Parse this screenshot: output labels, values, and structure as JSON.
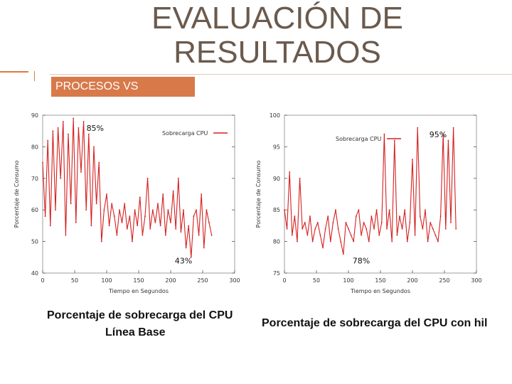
{
  "slide": {
    "title_line1": "EVALUACIÓN DE",
    "title_line2": "RESULTADOS",
    "banner": "PROCESOS VS",
    "caption_left_line1": "Porcentaje de sobrecarga del CPU",
    "caption_left_line2": "Línea Base",
    "caption_right": "Porcentaje de sobrecarga del CPU con hil"
  },
  "colors": {
    "series": "#d42020",
    "accent": "#d8794a",
    "title": "#6b5a4d"
  },
  "chart_data": [
    {
      "type": "line",
      "legend": "Sobrecarga CPU",
      "xlabel": "Tiempo en Segundos",
      "ylabel": "Porcentaje de Consumo",
      "xlim": [
        0,
        300
      ],
      "ylim": [
        40,
        90
      ],
      "xticks": [
        0,
        50,
        100,
        150,
        200,
        250,
        300
      ],
      "yticks": [
        40,
        50,
        60,
        70,
        80,
        90
      ],
      "annotations": [
        {
          "text": "85%",
          "x": 82,
          "y": 85
        },
        {
          "text": "43%",
          "x": 220,
          "y": 43
        }
      ],
      "x": [
        0,
        4,
        8,
        12,
        16,
        20,
        24,
        28,
        32,
        36,
        40,
        44,
        48,
        52,
        56,
        60,
        64,
        68,
        72,
        76,
        80,
        84,
        88,
        92,
        96,
        100,
        104,
        108,
        112,
        116,
        120,
        124,
        128,
        132,
        136,
        140,
        144,
        148,
        152,
        156,
        160,
        164,
        168,
        172,
        176,
        180,
        184,
        188,
        192,
        196,
        200,
        204,
        208,
        212,
        216,
        220,
        224,
        228,
        232,
        236,
        240,
        244,
        248,
        252,
        256,
        260,
        264
      ],
      "values": [
        75,
        58,
        82,
        55,
        85,
        60,
        86,
        70,
        88,
        52,
        84,
        62,
        89,
        56,
        86,
        72,
        88,
        60,
        84,
        55,
        80,
        62,
        75,
        50,
        60,
        65,
        55,
        62,
        58,
        52,
        60,
        56,
        62,
        54,
        58,
        50,
        60,
        55,
        64,
        52,
        58,
        70,
        54,
        60,
        56,
        62,
        55,
        65,
        52,
        60,
        56,
        66,
        54,
        70,
        53,
        60,
        48,
        55,
        45,
        58,
        60,
        52,
        65,
        48,
        60,
        56,
        52
      ]
    },
    {
      "type": "line",
      "legend": "Sobrecarga CPU",
      "xlabel": "Tiempo en Segundos",
      "ylabel": "Porcentaje de Consumo",
      "xlim": [
        0,
        300
      ],
      "ylim": [
        75,
        100
      ],
      "xticks": [
        0,
        50,
        100,
        150,
        200,
        250,
        300
      ],
      "yticks": [
        75,
        80,
        85,
        90,
        95,
        100
      ],
      "annotations": [
        {
          "text": "95%",
          "x": 240,
          "y": 96.5
        },
        {
          "text": "78%",
          "x": 120,
          "y": 76.5
        }
      ],
      "x": [
        0,
        4,
        8,
        12,
        16,
        20,
        24,
        28,
        32,
        36,
        40,
        44,
        48,
        52,
        56,
        60,
        64,
        68,
        72,
        76,
        80,
        84,
        88,
        92,
        96,
        100,
        104,
        108,
        112,
        116,
        120,
        124,
        128,
        132,
        136,
        140,
        144,
        148,
        152,
        156,
        160,
        164,
        168,
        172,
        176,
        180,
        184,
        188,
        192,
        196,
        200,
        204,
        208,
        212,
        216,
        220,
        224,
        228,
        232,
        236,
        240,
        244,
        248,
        252,
        256,
        260,
        264,
        268
      ],
      "values": [
        85,
        82,
        91,
        81,
        84,
        80,
        90,
        82,
        83,
        81,
        84,
        80,
        82,
        83,
        81,
        79,
        82,
        84,
        80,
        83,
        85,
        82,
        80,
        78,
        83,
        82,
        81,
        80,
        84,
        85,
        81,
        83,
        82,
        80,
        84,
        82,
        85,
        81,
        83,
        97,
        82,
        85,
        80,
        96,
        81,
        84,
        82,
        85,
        80,
        83,
        93,
        81,
        98,
        84,
        82,
        85,
        80,
        83,
        82,
        81,
        80,
        84,
        97,
        82,
        96,
        83,
        98,
        82
      ]
    }
  ]
}
